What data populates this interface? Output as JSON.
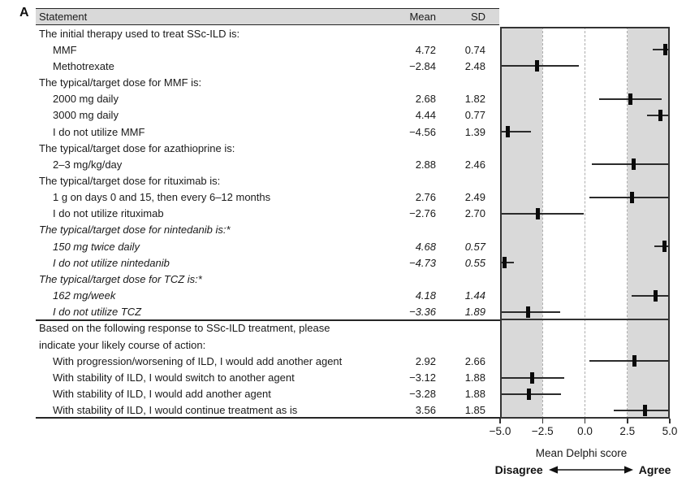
{
  "panel_label": "A",
  "table": {
    "headers": {
      "statement": "Statement",
      "mean": "Mean",
      "sd": "SD"
    }
  },
  "chart_data": {
    "type": "scatter",
    "subtype": "forest_plot_mean_sd",
    "title": "",
    "xlabel": "Mean Delphi score",
    "ylabel": "",
    "xlim": [
      -5,
      5
    ],
    "x_ticks": [
      -5.0,
      -2.5,
      0.0,
      2.5,
      5.0
    ],
    "x_tick_labels": [
      "−5.0",
      "−2.5",
      "0.0",
      "2.5",
      "5.0"
    ],
    "dashed_gridlines": [
      -2.5,
      0.0,
      2.5
    ],
    "shaded_bands": [
      [
        -5.0,
        -2.5
      ],
      [
        2.5,
        5.0
      ]
    ],
    "band_color": "#d9d9d9",
    "error_bar_rule": "mean ± SD, whiskers clipped to axis range",
    "direction_labels": {
      "negative": "Disagree",
      "positive": "Agree"
    },
    "separator_before_row": 18,
    "rows": [
      {
        "label": "The initial therapy used to treat SSc-ILD is:",
        "mean": null,
        "sd": null,
        "indent": 0,
        "italic": false
      },
      {
        "label": "MMF",
        "mean": 4.72,
        "sd": 0.74,
        "indent": 1,
        "italic": false
      },
      {
        "label": "Methotrexate",
        "mean": -2.84,
        "sd": 2.48,
        "indent": 1,
        "italic": false
      },
      {
        "label": "The typical/target dose for MMF is:",
        "mean": null,
        "sd": null,
        "indent": 0,
        "italic": false
      },
      {
        "label": "2000 mg daily",
        "mean": 2.68,
        "sd": 1.82,
        "indent": 1,
        "italic": false
      },
      {
        "label": "3000 mg daily",
        "mean": 4.44,
        "sd": 0.77,
        "indent": 1,
        "italic": false
      },
      {
        "label": "I do not utilize MMF",
        "mean": -4.56,
        "sd": 1.39,
        "indent": 1,
        "italic": false
      },
      {
        "label": "The typical/target dose for azathioprine is:",
        "mean": null,
        "sd": null,
        "indent": 0,
        "italic": false
      },
      {
        "label": "2–3 mg/kg/day",
        "mean": 2.88,
        "sd": 2.46,
        "indent": 1,
        "italic": false
      },
      {
        "label": "The typical/target dose for rituximab is:",
        "mean": null,
        "sd": null,
        "indent": 0,
        "italic": false
      },
      {
        "label": "1 g on days 0 and 15, then every 6–12 months",
        "mean": 2.76,
        "sd": 2.49,
        "indent": 1,
        "italic": false
      },
      {
        "label": "I do not utilize rituximab",
        "mean": -2.76,
        "sd": 2.7,
        "indent": 1,
        "italic": false
      },
      {
        "label": "The typical/target dose for nintedanib is:*",
        "mean": null,
        "sd": null,
        "indent": 0,
        "italic": true
      },
      {
        "label": "150 mg twice daily",
        "mean": 4.68,
        "sd": 0.57,
        "indent": 1,
        "italic": true
      },
      {
        "label": "I do not utilize nintedanib",
        "mean": -4.73,
        "sd": 0.55,
        "indent": 1,
        "italic": true
      },
      {
        "label": "The typical/target dose for TCZ is:*",
        "mean": null,
        "sd": null,
        "indent": 0,
        "italic": true
      },
      {
        "label": "162 mg/week",
        "mean": 4.18,
        "sd": 1.44,
        "indent": 1,
        "italic": true
      },
      {
        "label": "I do not utilize TCZ",
        "mean": -3.36,
        "sd": 1.89,
        "indent": 1,
        "italic": true
      },
      {
        "label": "Based on the following response to SSc-ILD treatment, please",
        "mean": null,
        "sd": null,
        "indent": 0,
        "italic": false
      },
      {
        "label": "indicate your likely course of action:",
        "mean": null,
        "sd": null,
        "indent": 0,
        "italic": false
      },
      {
        "label": "With progression/worsening of ILD, I would add another agent",
        "mean": 2.92,
        "sd": 2.66,
        "indent": 1,
        "italic": false
      },
      {
        "label": "With stability of ILD, I would switch to another agent",
        "mean": -3.12,
        "sd": 1.88,
        "indent": 1,
        "italic": false
      },
      {
        "label": "With stability of ILD, I would add another agent",
        "mean": -3.28,
        "sd": 1.88,
        "indent": 1,
        "italic": false
      },
      {
        "label": "With stability of ILD, I would continue treatment as is",
        "mean": 3.56,
        "sd": 1.85,
        "indent": 1,
        "italic": false
      }
    ]
  }
}
